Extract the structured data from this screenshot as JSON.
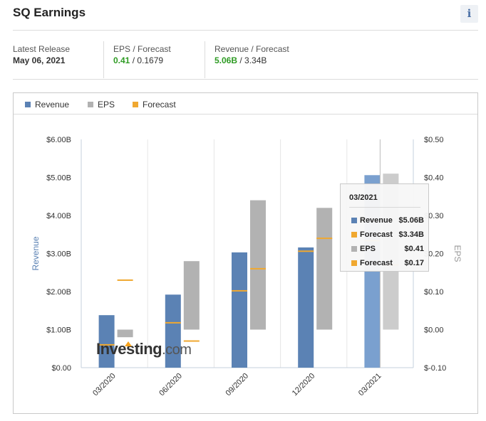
{
  "header": {
    "title": "SQ Earnings",
    "info_label": "i"
  },
  "stats": [
    {
      "label": "Latest Release",
      "value": "May 06, 2021",
      "highlight": "",
      "rest": ""
    },
    {
      "label": "EPS / Forecast",
      "value": "",
      "highlight": "0.41",
      "rest": " / 0.1679"
    },
    {
      "label": "Revenue / Forecast",
      "value": "",
      "highlight": "5.06B",
      "rest": " / 3.34B"
    }
  ],
  "legend": [
    {
      "label": "Revenue",
      "color": "#5b82b4"
    },
    {
      "label": "EPS",
      "color": "#b2b2b2"
    },
    {
      "label": "Forecast",
      "color": "#f0a830"
    }
  ],
  "chart_data": {
    "type": "bar",
    "categories": [
      "03/2020",
      "06/2020",
      "09/2020",
      "12/2020",
      "03/2021"
    ],
    "ylabel": "Revenue",
    "y2label": "EPS",
    "ylim": [
      0,
      6
    ],
    "y2lim": [
      -0.1,
      0.5
    ],
    "y_ticks": [
      "$0.00",
      "$1.00B",
      "$2.00B",
      "$3.00B",
      "$4.00B",
      "$5.00B",
      "$6.00B"
    ],
    "y2_ticks": [
      "$-0.10",
      "$0.00",
      "$0.10",
      "$0.20",
      "$0.30",
      "$0.40",
      "$0.50"
    ],
    "series": [
      {
        "name": "Revenue",
        "values": [
          1.38,
          1.92,
          3.03,
          3.16,
          5.06
        ]
      },
      {
        "name": "Revenue Forecast",
        "values": [
          0.6,
          1.18,
          2.02,
          3.06,
          3.34
        ]
      },
      {
        "name": "EPS",
        "values": [
          -0.02,
          0.18,
          0.34,
          0.32,
          0.41
        ]
      },
      {
        "name": "EPS Forecast",
        "values": [
          0.13,
          -0.03,
          0.16,
          0.24,
          0.17
        ]
      }
    ],
    "grid": "vertical",
    "legend_position": "top-left",
    "highlight_category": "03/2021"
  },
  "tooltip": {
    "title": "03/2021",
    "rows": [
      {
        "name": "Revenue",
        "value": "$5.06B",
        "color": "#5b82b4"
      },
      {
        "name": "Forecast",
        "value": "$3.34B",
        "color": "#f0a830"
      },
      {
        "name": "EPS",
        "value": "$0.41",
        "color": "#b2b2b2"
      },
      {
        "name": "Forecast",
        "value": "$0.17",
        "color": "#f0a830"
      }
    ]
  },
  "watermark": {
    "brand": "Investing",
    "suffix": ".com"
  }
}
